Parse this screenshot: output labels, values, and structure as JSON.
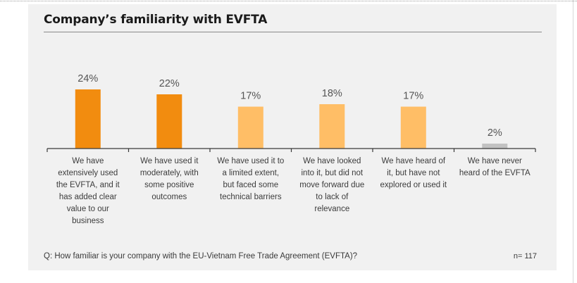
{
  "title": "Company’s familiarity with EVFTA",
  "question": "Q: How familiar is your company with the EU-Vietnam Free Trade Agreement (EVFTA)?",
  "n_label": "n= 117",
  "colors": {
    "dark_orange": "#f28c0f",
    "light_orange": "#ffbe66",
    "gray": "#c2c2c2",
    "panel_bg": "#f1f1f1"
  },
  "chart_data": {
    "type": "bar",
    "title": "Company’s familiarity with EVFTA",
    "xlabel": "",
    "ylabel": "",
    "ylim": [
      0,
      30
    ],
    "grid": false,
    "categories": [
      [
        "We have",
        "extensively used",
        "the EVFTA, and it",
        "has added clear",
        "value to our",
        "business"
      ],
      [
        "We have used it",
        "moderately, with",
        "some positive",
        "outcomes"
      ],
      [
        "We have used it to",
        "a limited extent,",
        "but faced some",
        "technical barriers"
      ],
      [
        "We have looked",
        "into it, but did not",
        "move forward due",
        "to lack of",
        "relevance"
      ],
      [
        "We have heard of",
        "it, but have not",
        "explored or used it"
      ],
      [
        "We have never",
        "heard of the EVFTA"
      ]
    ],
    "values": [
      24,
      22,
      17,
      18,
      17,
      2
    ],
    "labels": [
      "24%",
      "22%",
      "17%",
      "18%",
      "17%",
      "2%"
    ],
    "bar_colors": [
      "#f28c0f",
      "#f28c0f",
      "#ffbe66",
      "#ffbe66",
      "#ffbe66",
      "#c2c2c2"
    ]
  }
}
